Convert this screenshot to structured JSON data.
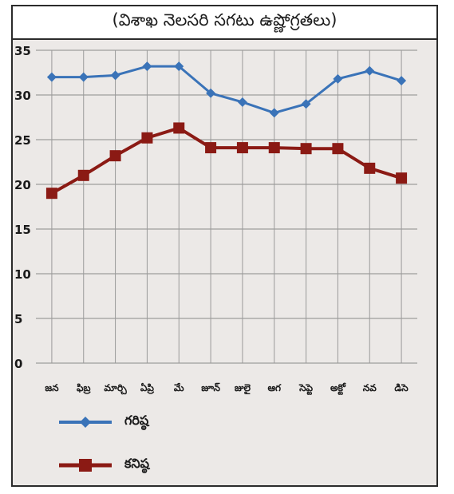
{
  "chart_data": {
    "type": "line",
    "title": "(విశాఖ నెలసరి సగటు ఉష్ణోగ్రతలు)",
    "categories": [
      "జన",
      "ఫిబ్ర",
      "మార్చి",
      "ఏప్రి",
      "మే",
      "జూన్",
      "జులై",
      "ఆగ",
      "సెప్టె",
      "అక్టో",
      "నవ",
      "డిసె"
    ],
    "yticks": [
      "0",
      "5",
      "10",
      "15",
      "20",
      "25",
      "30",
      "35"
    ],
    "ylim": [
      0,
      35
    ],
    "grid": true,
    "legend_position": "bottom-left",
    "series": [
      {
        "name": "గరిష్ఠ",
        "color": "#3a73b8",
        "marker": "diamond",
        "values": [
          32,
          32,
          32.2,
          33.2,
          33.2,
          30.2,
          29.2,
          28,
          29,
          31.8,
          32.7,
          31.6
        ]
      },
      {
        "name": "కనిష్ఠ",
        "color": "#8b1a14",
        "marker": "square",
        "values": [
          19,
          21,
          23.2,
          25.2,
          26.3,
          24.1,
          24.1,
          24.1,
          24,
          24,
          21.8,
          20.7
        ]
      }
    ]
  }
}
